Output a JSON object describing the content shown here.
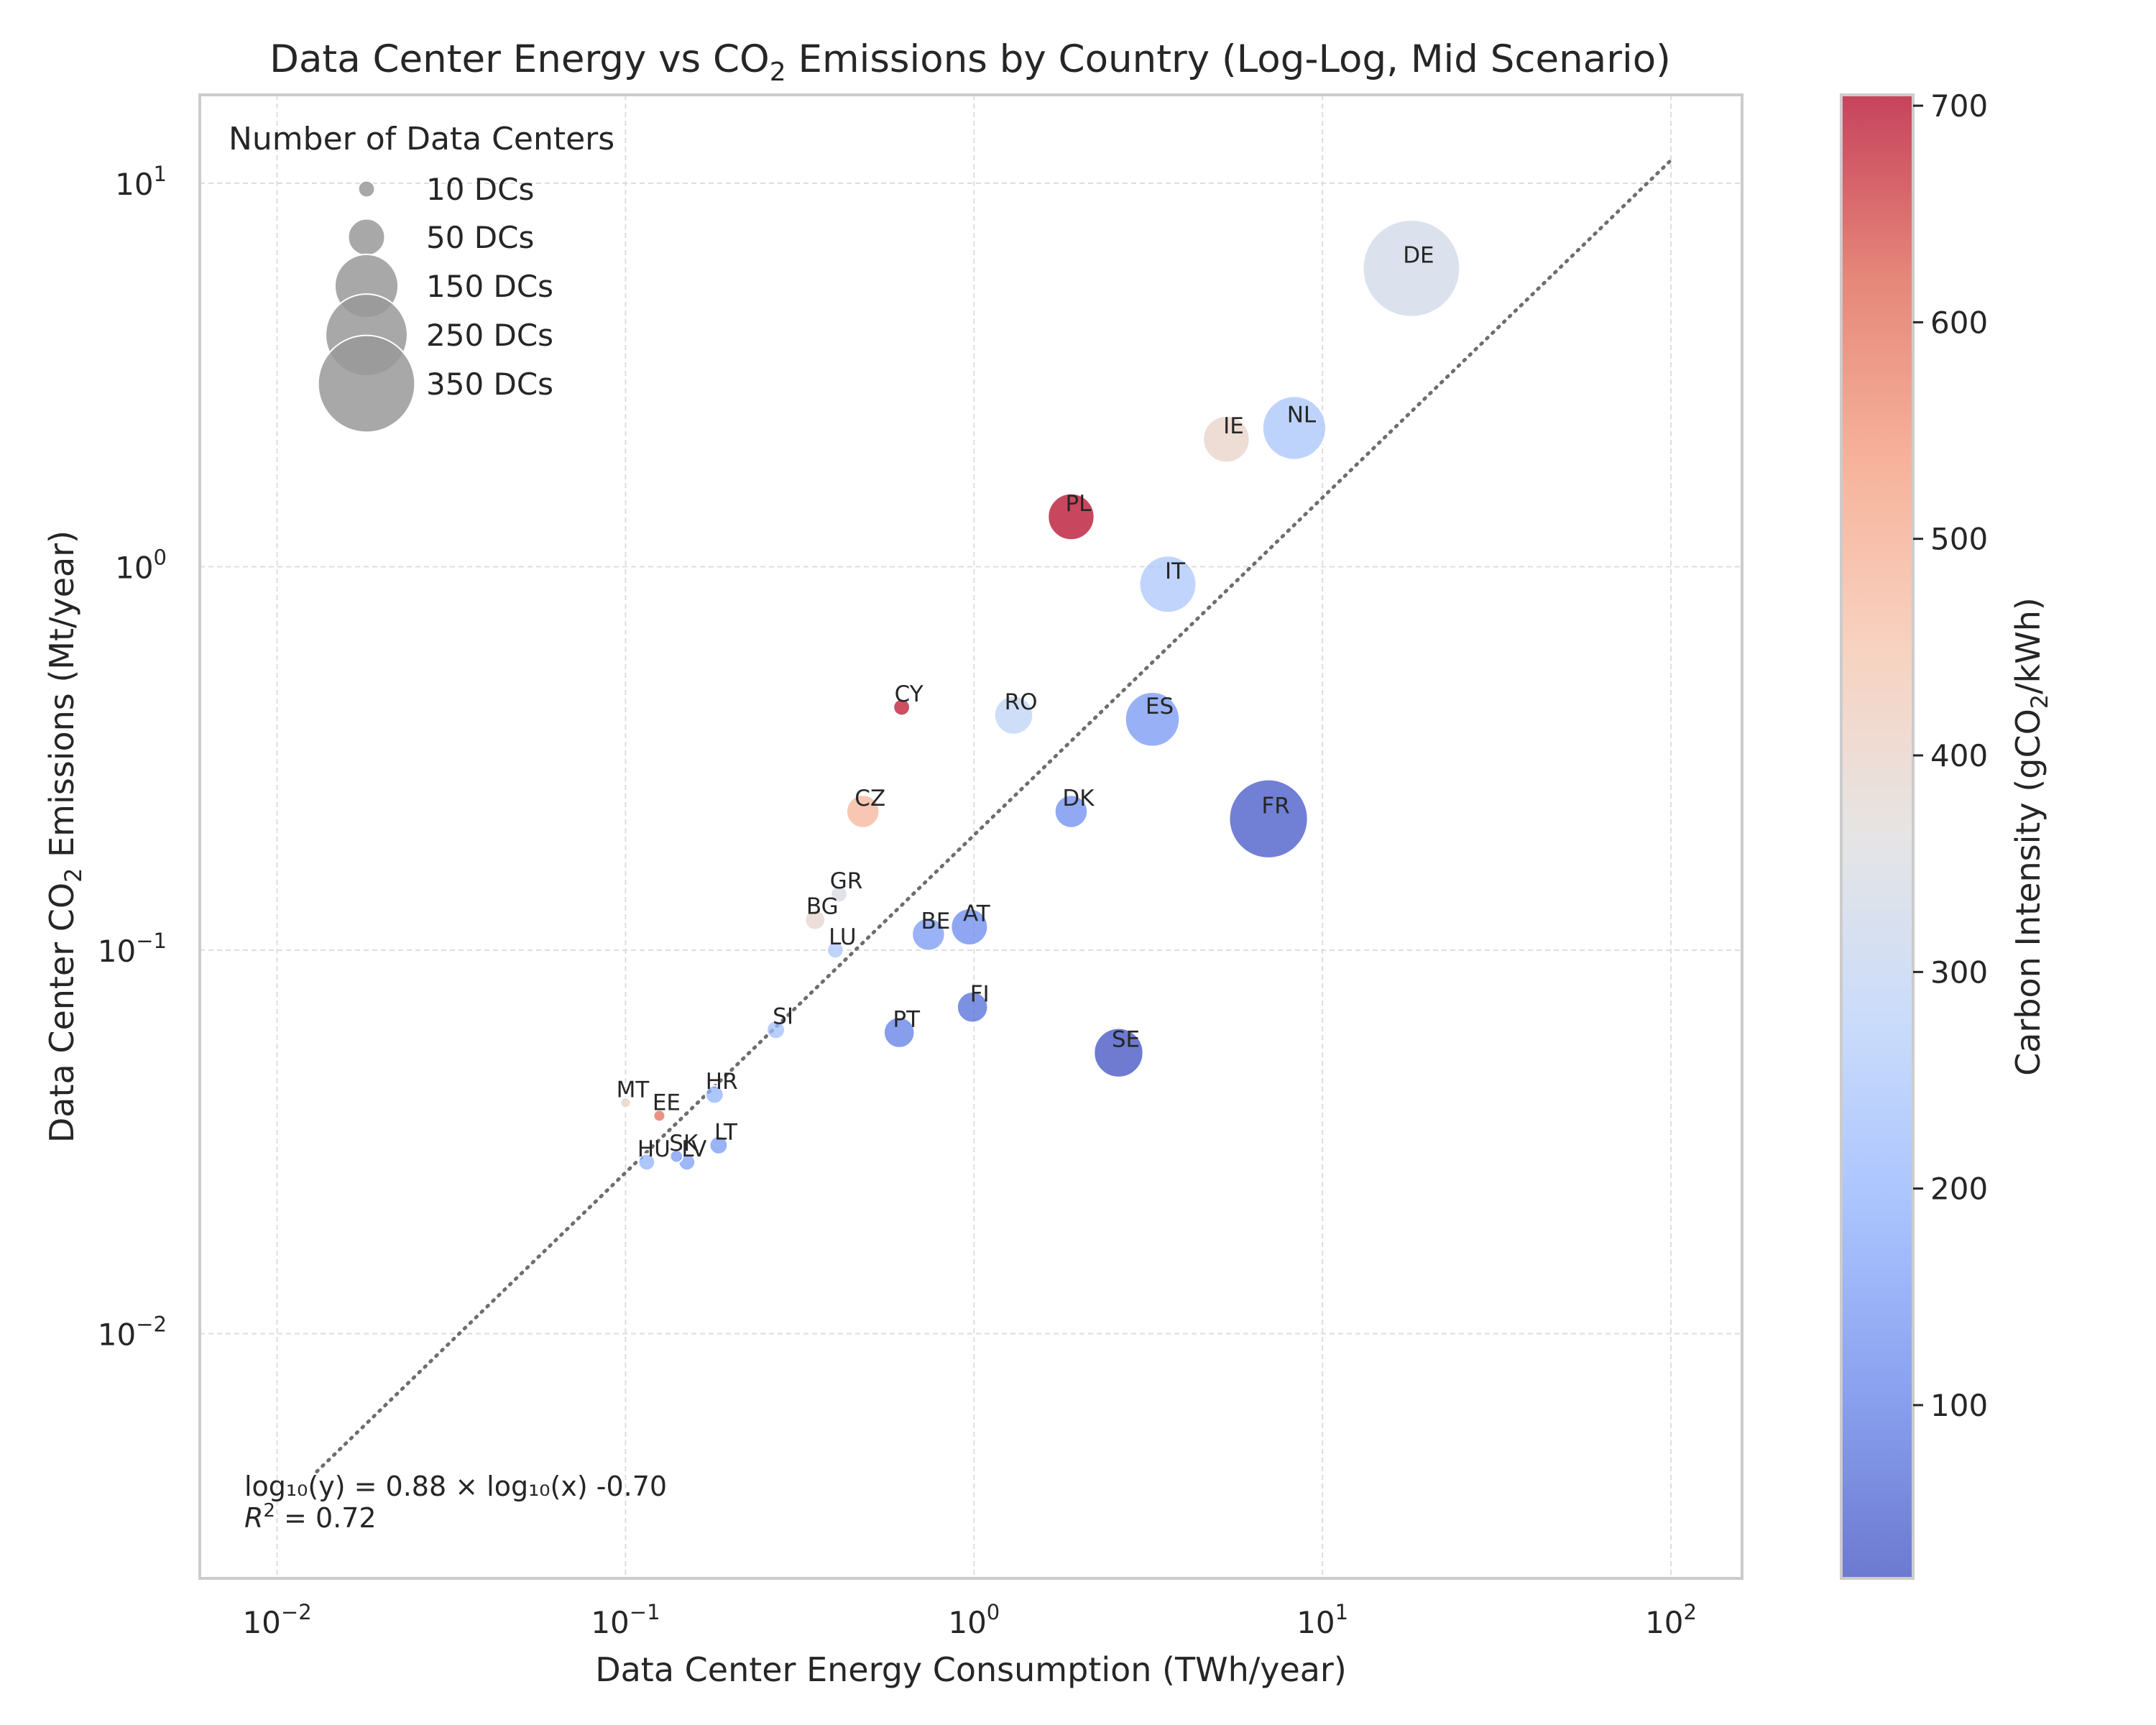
{
  "chart_data": {
    "type": "scatter",
    "title_parts": {
      "prefix": "Data Center Energy vs CO",
      "sub": "2",
      "suffix": " Emissions by Country (Log-Log, Mid Scenario)"
    },
    "xlabel": "Data Center Energy Consumption (TWh/year)",
    "ylabel_parts": {
      "prefix": "Data Center CO",
      "sub": "2",
      "suffix": " Emissions (Mt/year)"
    },
    "x_scale": "log",
    "y_scale": "log",
    "xlim": [
      0.006,
      160
    ],
    "ylim": [
      0.0023,
      17
    ],
    "x_ticks": [
      {
        "base": "10",
        "exp": "−2",
        "value": 0.01
      },
      {
        "base": "10",
        "exp": "−1",
        "value": 0.1
      },
      {
        "base": "10",
        "exp": "0",
        "value": 1
      },
      {
        "base": "10",
        "exp": "1",
        "value": 10
      },
      {
        "base": "10",
        "exp": "2",
        "value": 100
      }
    ],
    "y_ticks": [
      {
        "base": "10",
        "exp": "−2",
        "value": 0.01
      },
      {
        "base": "10",
        "exp": "−1",
        "value": 0.1
      },
      {
        "base": "10",
        "exp": "0",
        "value": 1
      },
      {
        "base": "10",
        "exp": "1",
        "value": 10
      }
    ],
    "grid": true,
    "points": [
      {
        "label": "DE",
        "x": 18.0,
        "y": 6.0,
        "dcs": 350,
        "ci": 330
      },
      {
        "label": "NL",
        "x": 8.3,
        "y": 2.3,
        "dcs": 150,
        "ci": 245
      },
      {
        "label": "IE",
        "x": 5.3,
        "y": 2.15,
        "dcs": 80,
        "ci": 400
      },
      {
        "label": "PL",
        "x": 1.9,
        "y": 1.35,
        "dcs": 80,
        "ci": 700
      },
      {
        "label": "IT",
        "x": 3.6,
        "y": 0.9,
        "dcs": 120,
        "ci": 250
      },
      {
        "label": "CY",
        "x": 0.62,
        "y": 0.43,
        "dcs": 10,
        "ci": 690
      },
      {
        "label": "RO",
        "x": 1.3,
        "y": 0.41,
        "dcs": 55,
        "ci": 290
      },
      {
        "label": "ES",
        "x": 3.25,
        "y": 0.4,
        "dcs": 110,
        "ci": 145
      },
      {
        "label": "CZ",
        "x": 0.48,
        "y": 0.23,
        "dcs": 40,
        "ci": 480
      },
      {
        "label": "DK",
        "x": 1.9,
        "y": 0.23,
        "dcs": 40,
        "ci": 125
      },
      {
        "label": "FR",
        "x": 7.0,
        "y": 0.22,
        "dcs": 230,
        "ci": 35
      },
      {
        "label": "GR",
        "x": 0.41,
        "y": 0.14,
        "dcs": 10,
        "ci": 350
      },
      {
        "label": "BG",
        "x": 0.35,
        "y": 0.12,
        "dcs": 15,
        "ci": 390
      },
      {
        "label": "BE",
        "x": 0.74,
        "y": 0.11,
        "dcs": 40,
        "ci": 150
      },
      {
        "label": "AT",
        "x": 0.97,
        "y": 0.115,
        "dcs": 50,
        "ci": 120
      },
      {
        "label": "LU",
        "x": 0.4,
        "y": 0.1,
        "dcs": 10,
        "ci": 250
      },
      {
        "label": "FI",
        "x": 0.99,
        "y": 0.071,
        "dcs": 35,
        "ci": 70
      },
      {
        "label": "PT",
        "x": 0.61,
        "y": 0.061,
        "dcs": 35,
        "ci": 100
      },
      {
        "label": "SI",
        "x": 0.27,
        "y": 0.062,
        "dcs": 12,
        "ci": 230
      },
      {
        "label": "SE",
        "x": 2.6,
        "y": 0.054,
        "dcs": 90,
        "ci": 25
      },
      {
        "label": "MT",
        "x": 0.1,
        "y": 0.04,
        "dcs": 4,
        "ci": 400
      },
      {
        "label": "HR",
        "x": 0.18,
        "y": 0.042,
        "dcs": 12,
        "ci": 200
      },
      {
        "label": "EE",
        "x": 0.125,
        "y": 0.037,
        "dcs": 5,
        "ci": 600
      },
      {
        "label": "LT",
        "x": 0.185,
        "y": 0.031,
        "dcs": 12,
        "ci": 150
      },
      {
        "label": "SK",
        "x": 0.14,
        "y": 0.029,
        "dcs": 6,
        "ci": 150
      },
      {
        "label": "HU",
        "x": 0.115,
        "y": 0.028,
        "dcs": 10,
        "ci": 200
      },
      {
        "label": "LV",
        "x": 0.15,
        "y": 0.028,
        "dcs": 10,
        "ci": 160
      }
    ],
    "fit": {
      "slope": 0.88,
      "intercept": -0.7,
      "x_range": [
        0.013,
        100
      ],
      "line_color": "#6e6e6e"
    },
    "annotation": {
      "eq": "log₁₀(y) = 0.88 × log₁₀(x) -0.70",
      "r2_label": "R",
      "r2_exp": "2",
      "r2_value": " = 0.72"
    },
    "size_legend": {
      "title": "Number of Data Centers",
      "location": "upper-left",
      "entries": [
        {
          "label": "10 DCs",
          "dcs": 10
        },
        {
          "label": "50 DCs",
          "dcs": 50
        },
        {
          "label": "150 DCs",
          "dcs": 150
        },
        {
          "label": "250 DCs",
          "dcs": 250
        },
        {
          "label": "350 DCs",
          "dcs": 350
        }
      ],
      "marker_color": "#999999"
    },
    "colorbar": {
      "label_parts": {
        "prefix": "Carbon Intensity (gCO",
        "sub": "2",
        "suffix": "/kWh)"
      },
      "cmap": "coolwarm",
      "vmin": 20,
      "vmax": 705,
      "ticks": [
        100,
        200,
        300,
        400,
        500,
        600,
        700
      ],
      "stops": [
        "#3b4cc0",
        "#6282ea",
        "#8db0fe",
        "#b8d0f9",
        "#dddcdc",
        "#f5c4ac",
        "#f49a7b",
        "#de604d",
        "#b40426"
      ],
      "alpha": 0.75
    }
  }
}
